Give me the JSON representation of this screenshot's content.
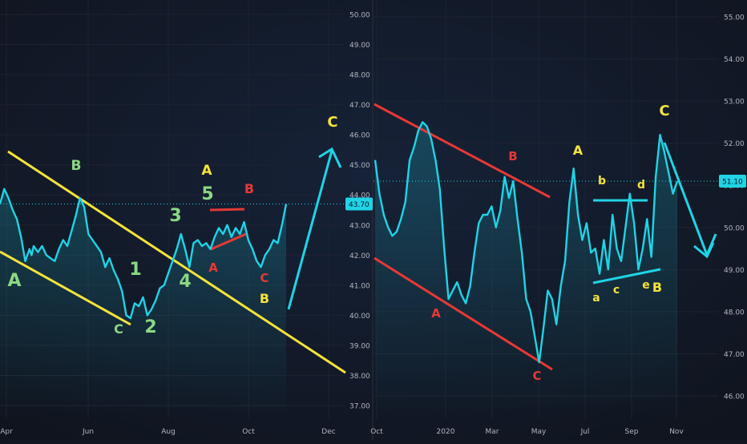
{
  "chart_data": [
    {
      "type": "line",
      "title": "",
      "x_ticks": [
        "Apr",
        "Jun",
        "Aug",
        "Oct",
        "Dec"
      ],
      "y_ticks": [
        37.0,
        38.0,
        39.0,
        40.0,
        41.0,
        42.0,
        43.0,
        44.0,
        45.0,
        46.0,
        47.0,
        48.0,
        49.0,
        50.0
      ],
      "ylim": [
        36.5,
        50.5
      ],
      "last_price": "43.70",
      "series": [
        {
          "values": [
            [
              0,
              43.7
            ],
            [
              2,
              44.2
            ],
            [
              4,
              43.9
            ],
            [
              6,
              43.5
            ],
            [
              8,
              43.2
            ],
            [
              10,
              42.6
            ],
            [
              12,
              41.8
            ],
            [
              14,
              42.2
            ],
            [
              15,
              42.0
            ],
            [
              16,
              42.3
            ],
            [
              18,
              42.1
            ],
            [
              20,
              42.3
            ],
            [
              22,
              42.0
            ],
            [
              24,
              41.9
            ],
            [
              26,
              41.8
            ],
            [
              28,
              42.2
            ],
            [
              30,
              42.5
            ],
            [
              32,
              42.3
            ],
            [
              34,
              42.8
            ],
            [
              36,
              43.3
            ],
            [
              38,
              43.9
            ],
            [
              40,
              43.6
            ],
            [
              42,
              42.7
            ],
            [
              44,
              42.5
            ],
            [
              46,
              42.3
            ],
            [
              48,
              42.1
            ],
            [
              50,
              41.6
            ],
            [
              52,
              41.9
            ],
            [
              54,
              41.5
            ],
            [
              56,
              41.2
            ],
            [
              58,
              40.8
            ],
            [
              60,
              40.0
            ],
            [
              62,
              39.9
            ],
            [
              64,
              40.4
            ],
            [
              66,
              40.3
            ],
            [
              68,
              40.6
            ],
            [
              70,
              40.0
            ],
            [
              72,
              40.2
            ],
            [
              74,
              40.5
            ],
            [
              76,
              40.9
            ],
            [
              78,
              41.0
            ],
            [
              80,
              41.4
            ],
            [
              82,
              41.8
            ],
            [
              84,
              42.2
            ],
            [
              86,
              42.7
            ],
            [
              88,
              42.2
            ],
            [
              90,
              41.6
            ],
            [
              92,
              42.4
            ],
            [
              94,
              42.5
            ],
            [
              96,
              42.3
            ],
            [
              98,
              42.4
            ],
            [
              100,
              42.2
            ],
            [
              102,
              42.6
            ],
            [
              104,
              42.9
            ],
            [
              106,
              42.7
            ],
            [
              108,
              43.0
            ],
            [
              110,
              42.6
            ],
            [
              112,
              42.9
            ],
            [
              114,
              42.7
            ],
            [
              116,
              43.1
            ],
            [
              118,
              42.5
            ],
            [
              120,
              42.2
            ],
            [
              122,
              41.8
            ],
            [
              124,
              41.6
            ],
            [
              126,
              42.0
            ],
            [
              128,
              42.2
            ],
            [
              130,
              42.5
            ],
            [
              132,
              42.4
            ],
            [
              134,
              43.0
            ],
            [
              136,
              43.7
            ]
          ]
        }
      ],
      "annotations": [
        {
          "text": "A",
          "color": "#8bd883"
        },
        {
          "text": "B",
          "color": "#8bd883"
        },
        {
          "text": "C",
          "color": "#8bd883"
        },
        {
          "text": "1",
          "color": "#8bd883"
        },
        {
          "text": "2",
          "color": "#8bd883"
        },
        {
          "text": "3",
          "color": "#8bd883"
        },
        {
          "text": "4",
          "color": "#8bd883"
        },
        {
          "text": "5",
          "color": "#8bd883"
        },
        {
          "text": "A",
          "color": "#f5e33c"
        },
        {
          "text": "B",
          "color": "#e53935"
        },
        {
          "text": "A",
          "color": "#e53935"
        },
        {
          "text": "C",
          "color": "#e53935"
        },
        {
          "text": "B",
          "color": "#f5e33c"
        },
        {
          "text": "C",
          "color": "#f5e33c"
        }
      ]
    },
    {
      "type": "line",
      "title": "",
      "x_ticks": [
        "Oct",
        "2020",
        "Mar",
        "May",
        "Jul",
        "Sep",
        "Nov"
      ],
      "y_ticks": [
        46.0,
        47.0,
        48.0,
        49.0,
        50.0,
        51.0,
        52.0,
        53.0,
        54.0,
        55.0
      ],
      "ylim": [
        45.5,
        55.5
      ],
      "last_price": "51.10",
      "series": [
        {
          "values": [
            [
              0,
              51.6
            ],
            [
              2,
              50.8
            ],
            [
              4,
              50.3
            ],
            [
              6,
              50.0
            ],
            [
              8,
              49.8
            ],
            [
              10,
              49.9
            ],
            [
              12,
              50.2
            ],
            [
              14,
              50.6
            ],
            [
              16,
              51.6
            ],
            [
              18,
              51.9
            ],
            [
              20,
              52.3
            ],
            [
              22,
              52.5
            ],
            [
              24,
              52.4
            ],
            [
              26,
              52.1
            ],
            [
              28,
              51.6
            ],
            [
              30,
              50.9
            ],
            [
              32,
              49.5
            ],
            [
              34,
              48.3
            ],
            [
              36,
              48.5
            ],
            [
              38,
              48.7
            ],
            [
              40,
              48.4
            ],
            [
              42,
              48.2
            ],
            [
              44,
              48.6
            ],
            [
              46,
              49.4
            ],
            [
              48,
              50.1
            ],
            [
              50,
              50.3
            ],
            [
              52,
              50.3
            ],
            [
              54,
              50.5
            ],
            [
              56,
              50.0
            ],
            [
              58,
              50.4
            ],
            [
              60,
              51.2
            ],
            [
              62,
              50.7
            ],
            [
              64,
              51.1
            ],
            [
              66,
              50.2
            ],
            [
              68,
              49.4
            ],
            [
              70,
              48.3
            ],
            [
              72,
              48.0
            ],
            [
              74,
              47.4
            ],
            [
              76,
              46.8
            ],
            [
              78,
              47.6
            ],
            [
              80,
              48.5
            ],
            [
              82,
              48.3
            ],
            [
              84,
              47.7
            ],
            [
              86,
              48.6
            ],
            [
              88,
              49.2
            ],
            [
              90,
              50.6
            ],
            [
              92,
              51.4
            ],
            [
              94,
              50.3
            ],
            [
              96,
              49.7
            ],
            [
              98,
              50.1
            ],
            [
              100,
              49.4
            ],
            [
              102,
              49.5
            ],
            [
              104,
              48.9
            ],
            [
              106,
              49.7
            ],
            [
              108,
              49.0
            ],
            [
              110,
              50.3
            ],
            [
              112,
              49.5
            ],
            [
              114,
              49.2
            ],
            [
              116,
              50.0
            ],
            [
              118,
              50.8
            ],
            [
              120,
              50.1
            ],
            [
              122,
              49.0
            ],
            [
              124,
              49.5
            ],
            [
              126,
              50.2
            ],
            [
              128,
              49.3
            ],
            [
              130,
              51.2
            ],
            [
              132,
              52.2
            ],
            [
              134,
              51.8
            ],
            [
              136,
              51.3
            ],
            [
              138,
              50.8
            ],
            [
              140,
              51.1
            ]
          ]
        }
      ],
      "annotations": [
        {
          "text": "A",
          "color": "#e53935"
        },
        {
          "text": "B",
          "color": "#e53935"
        },
        {
          "text": "C",
          "color": "#e53935"
        },
        {
          "text": "A",
          "color": "#f5e33c"
        },
        {
          "text": "C",
          "color": "#f5e33c"
        },
        {
          "text": "b",
          "color": "#f5e33c"
        },
        {
          "text": "d",
          "color": "#f5e33c"
        },
        {
          "text": "a",
          "color": "#f5e33c"
        },
        {
          "text": "c",
          "color": "#f5e33c"
        },
        {
          "text": "e",
          "color": "#f5e33c"
        },
        {
          "text": "B",
          "color": "#f5e33c"
        }
      ]
    }
  ],
  "colors": {
    "background": "#131722",
    "price_line": "#1fd4e6",
    "axis_text": "#b2b5be",
    "grid": "#1e2230",
    "price_tag": "#1fd4e6"
  }
}
